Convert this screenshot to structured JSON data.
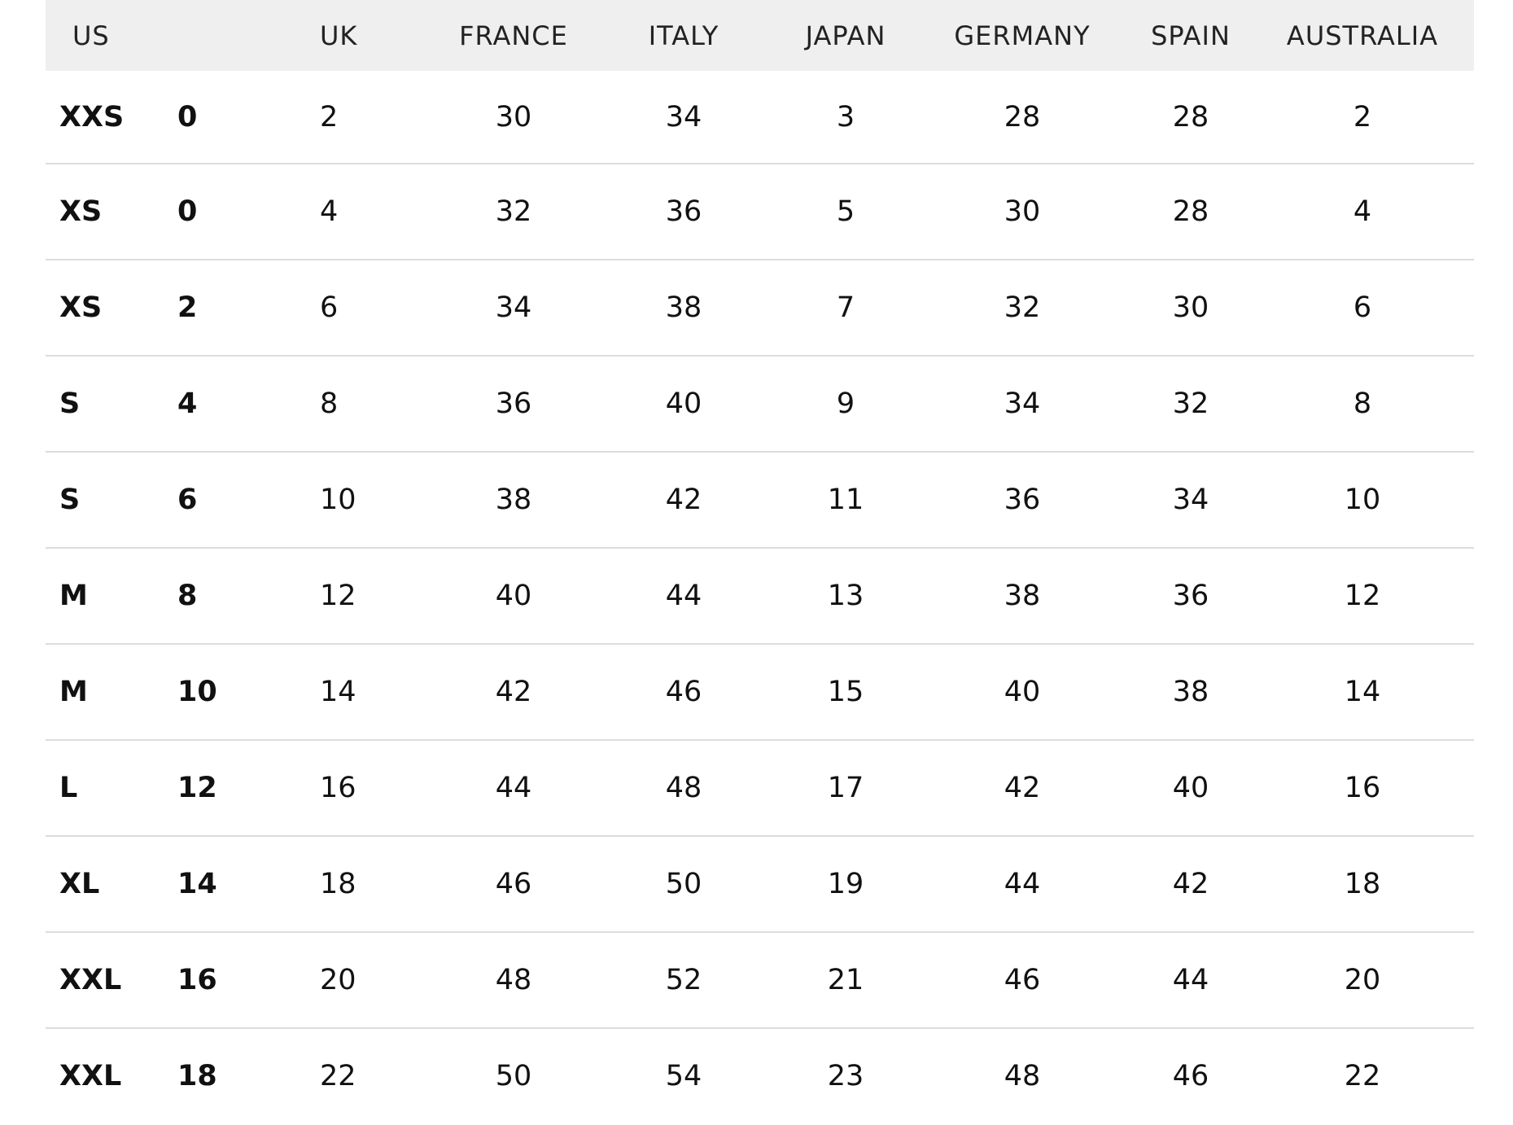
{
  "headers": [
    "US",
    "UK",
    "FRANCE",
    "ITALY",
    "JAPAN",
    "GERMANY",
    "SPAIN",
    "AUSTRALIA"
  ],
  "rows": [
    {
      "size": "XXS",
      "us": "0",
      "uk": "2",
      "france": "30",
      "italy": "34",
      "japan": "3",
      "germany": "28",
      "spain": "28",
      "australia": "2"
    },
    {
      "size": "XS",
      "us": "0",
      "uk": "4",
      "france": "32",
      "italy": "36",
      "japan": "5",
      "germany": "30",
      "spain": "28",
      "australia": "4"
    },
    {
      "size": "XS",
      "us": "2",
      "uk": "6",
      "france": "34",
      "italy": "38",
      "japan": "7",
      "germany": "32",
      "spain": "30",
      "australia": "6"
    },
    {
      "size": "S",
      "us": "4",
      "uk": "8",
      "france": "36",
      "italy": "40",
      "japan": "9",
      "germany": "34",
      "spain": "32",
      "australia": "8"
    },
    {
      "size": "S",
      "us": "6",
      "uk": "10",
      "france": "38",
      "italy": "42",
      "japan": "11",
      "germany": "36",
      "spain": "34",
      "australia": "10"
    },
    {
      "size": "M",
      "us": "8",
      "uk": "12",
      "france": "40",
      "italy": "44",
      "japan": "13",
      "germany": "38",
      "spain": "36",
      "australia": "12"
    },
    {
      "size": "M",
      "us": "10",
      "uk": "14",
      "france": "42",
      "italy": "46",
      "japan": "15",
      "germany": "40",
      "spain": "38",
      "australia": "14"
    },
    {
      "size": "L",
      "us": "12",
      "uk": "16",
      "france": "44",
      "italy": "48",
      "japan": "17",
      "germany": "42",
      "spain": "40",
      "australia": "16"
    },
    {
      "size": "XL",
      "us": "14",
      "uk": "18",
      "france": "46",
      "italy": "50",
      "japan": "19",
      "germany": "44",
      "spain": "42",
      "australia": "18"
    },
    {
      "size": "XXL",
      "us": "16",
      "uk": "20",
      "france": "48",
      "italy": "52",
      "japan": "21",
      "germany": "46",
      "spain": "44",
      "australia": "20"
    },
    {
      "size": "XXL",
      "us": "18",
      "uk": "22",
      "france": "50",
      "italy": "54",
      "japan": "23",
      "germany": "48",
      "spain": "46",
      "australia": "22"
    }
  ]
}
